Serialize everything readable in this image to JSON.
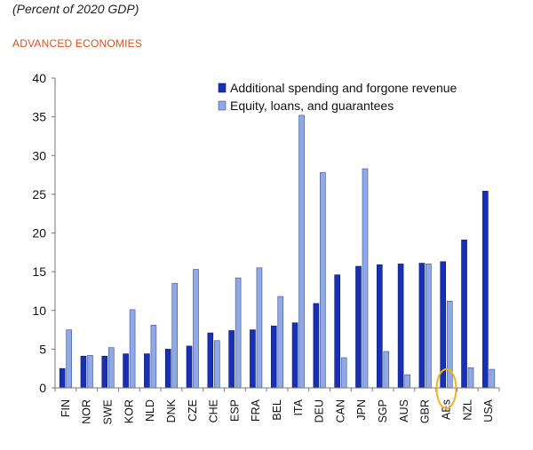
{
  "header": {
    "subtitle": "(Percent of 2020 GDP)",
    "section_label": "ADVANCED ECONOMIES"
  },
  "colors": {
    "series_dark": "#1730b6",
    "series_light": "#8ea9e6",
    "section_label": "#d9541e",
    "highlight_circle": "#f2b21b"
  },
  "chart_data": {
    "type": "bar",
    "title": "",
    "xlabel": "",
    "ylabel": "",
    "ylim": [
      0,
      40
    ],
    "yticks": [
      0,
      5,
      10,
      15,
      20,
      25,
      30,
      35,
      40
    ],
    "legend_position": "top-right",
    "highlighted_category": "AEs",
    "categories": [
      "FIN",
      "NOR",
      "SWE",
      "KOR",
      "NLD",
      "DNK",
      "CZE",
      "CHE",
      "ESP",
      "FRA",
      "BEL",
      "ITA",
      "DEU",
      "CAN",
      "JPN",
      "SGP",
      "AUS",
      "GBR",
      "AEs",
      "NZL",
      "USA"
    ],
    "series": [
      {
        "name": "Additional spending and forgone revenue",
        "values": [
          2.5,
          4.1,
          4.1,
          4.4,
          4.4,
          5.0,
          5.4,
          7.1,
          7.4,
          7.5,
          8.0,
          8.4,
          10.9,
          14.6,
          15.7,
          15.9,
          16.0,
          16.1,
          16.3,
          19.1,
          25.4
        ]
      },
      {
        "name": "Equity, loans, and guarantees",
        "values": [
          7.5,
          4.2,
          5.2,
          10.1,
          8.1,
          13.5,
          15.3,
          6.1,
          14.2,
          15.5,
          11.8,
          35.2,
          27.8,
          3.9,
          28.3,
          4.7,
          1.7,
          16.0,
          11.2,
          2.6,
          2.4
        ]
      }
    ]
  }
}
